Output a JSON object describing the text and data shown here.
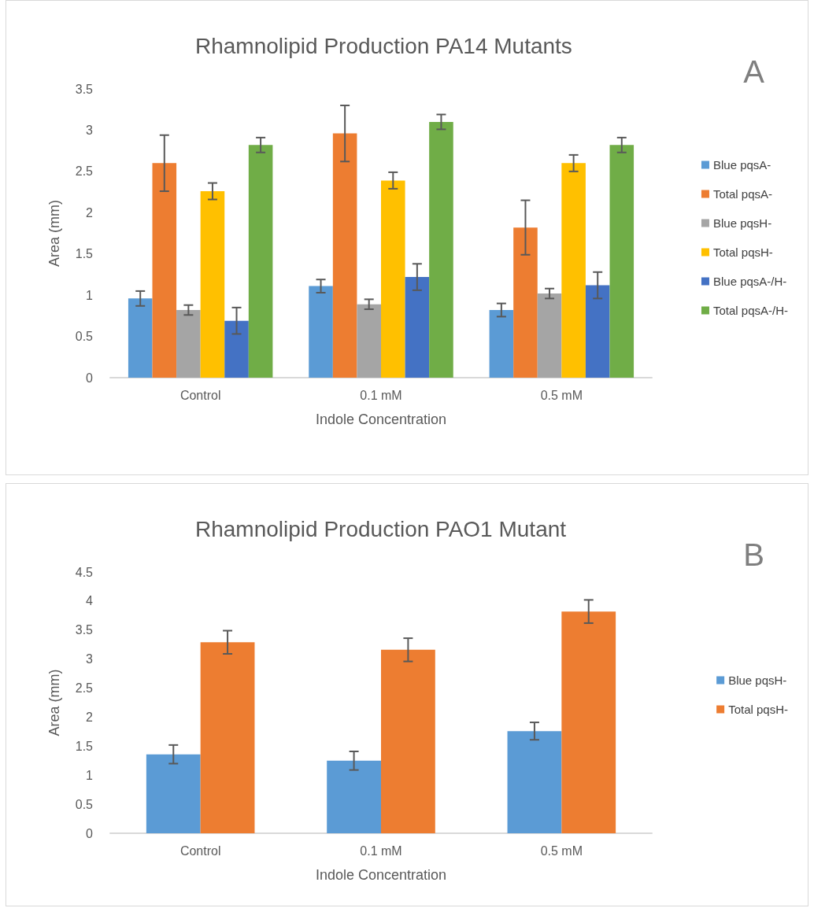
{
  "chart_data": [
    {
      "type": "bar",
      "title": "Rhamnolipid Production PA14 Mutants",
      "xlabel": "Indole Concentration",
      "ylabel": "Area (mm)",
      "annotations": [
        "A"
      ],
      "categories": [
        "Control",
        "0.1 mM",
        "0.5 mM"
      ],
      "ylim": [
        0,
        3.5
      ],
      "yticks": [
        0,
        0.5,
        1,
        1.5,
        2,
        2.5,
        3,
        3.5
      ],
      "grid": false,
      "legend": "right",
      "series": [
        {
          "name": "Blue pqsA-",
          "color": "#5b9bd5",
          "values": [
            0.96,
            1.11,
            0.82
          ],
          "errors": [
            0.09,
            0.08,
            0.08
          ]
        },
        {
          "name": "Total pqsA-",
          "color": "#ed7d31",
          "values": [
            2.6,
            2.96,
            1.82
          ],
          "errors": [
            0.34,
            0.34,
            0.33
          ]
        },
        {
          "name": "Blue pqsH-",
          "color": "#a5a5a5",
          "values": [
            0.82,
            0.89,
            1.02
          ],
          "errors": [
            0.06,
            0.06,
            0.06
          ]
        },
        {
          "name": "Total pqsH-",
          "color": "#ffc000",
          "values": [
            2.26,
            2.39,
            2.6
          ],
          "errors": [
            0.1,
            0.1,
            0.1
          ]
        },
        {
          "name": "Blue pqsA-/H-",
          "color": "#4472c4",
          "values": [
            0.69,
            1.22,
            1.12
          ],
          "errors": [
            0.16,
            0.16,
            0.16
          ]
        },
        {
          "name": "Total pqsA-/H-",
          "color": "#70ad47",
          "values": [
            2.82,
            3.1,
            2.82
          ],
          "errors": [
            0.09,
            0.09,
            0.09
          ]
        }
      ]
    },
    {
      "type": "bar",
      "title": "Rhamnolipid Production PAO1 Mutant",
      "xlabel": "Indole Concentration",
      "ylabel": "Area (mm)",
      "annotations": [
        "B"
      ],
      "categories": [
        "Control",
        "0.1 mM",
        "0.5 mM"
      ],
      "ylim": [
        0,
        4.5
      ],
      "yticks": [
        0,
        0.5,
        1,
        1.5,
        2,
        2.5,
        3,
        3.5,
        4,
        4.5
      ],
      "grid": false,
      "legend": "right",
      "series": [
        {
          "name": "Blue pqsH-",
          "color": "#5b9bd5",
          "values": [
            1.36,
            1.25,
            1.76
          ],
          "errors": [
            0.16,
            0.16,
            0.15
          ]
        },
        {
          "name": "Total pqsH-",
          "color": "#ed7d31",
          "values": [
            3.29,
            3.16,
            3.82
          ],
          "errors": [
            0.2,
            0.2,
            0.2
          ]
        }
      ]
    }
  ]
}
